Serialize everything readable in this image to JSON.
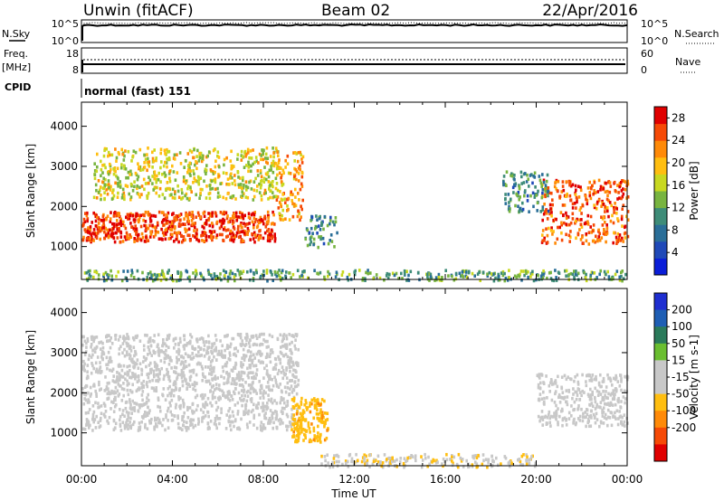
{
  "header": {
    "station": "Unwin (fitACF)",
    "beam": "Beam 02",
    "date": "22/Apr/2016"
  },
  "panel_labels": {
    "nsky": "N.Sky",
    "nsearch": "N.Search",
    "freq": "Freq.",
    "mhz": "[MHz]",
    "nave": "Nave",
    "cpid": "CPID",
    "cpid_value": "normal (fast) 151"
  },
  "small_axes": {
    "noise_ticks": [
      "10^5",
      "10^0"
    ],
    "noise_right_ticks": [
      "10^5",
      "10^0"
    ],
    "freq_ticks": [
      "18",
      "8"
    ],
    "nave_ticks": [
      "60",
      "0"
    ]
  },
  "colors": {
    "power_scale": [
      "#0a1ed8",
      "#1f49b8",
      "#2a6e98",
      "#3e8c78",
      "#78b440",
      "#c8d820",
      "#ffbe10",
      "#ff8a08",
      "#f64a06",
      "#e00000"
    ],
    "velocity_scale": [
      "#1e2ed0",
      "#1e5eb4",
      "#2a7a5a",
      "#6abe30",
      "#c8c8c8",
      "#c8c8c8",
      "#ffbe10",
      "#ff8a08",
      "#f64a06",
      "#e00000"
    ]
  },
  "chart_data": [
    {
      "type": "heatmap",
      "name": "power",
      "xlabel": "Time UT",
      "ylabel": "Slant Range [km]",
      "x_ticks": [
        "00:00",
        "04:00",
        "08:00",
        "12:00",
        "16:00",
        "20:00",
        "00:00"
      ],
      "x_range_hours": [
        0,
        24
      ],
      "y_ticks": [
        1000,
        2000,
        3000,
        4000
      ],
      "y_range_km": [
        180,
        4600
      ],
      "colorbar_label": "Power [dB]",
      "colorbar_ticks": [
        4,
        8,
        12,
        16,
        20,
        24,
        28
      ],
      "colorbar_range": [
        0,
        30
      ],
      "features": [
        {
          "hours": [
            0,
            8.5
          ],
          "range_km": [
            1150,
            1900
          ],
          "level_db": 26
        },
        {
          "hours": [
            0.5,
            8.6
          ],
          "range_km": [
            2200,
            3500
          ],
          "level_db": 17
        },
        {
          "hours": [
            8.5,
            9.7
          ],
          "range_km": [
            1700,
            3400
          ],
          "level_db": 22
        },
        {
          "hours": [
            9.8,
            11.2
          ],
          "range_km": [
            1000,
            1800
          ],
          "level_db": 10
        },
        {
          "hours": [
            20.2,
            24
          ],
          "range_km": [
            1100,
            2700
          ],
          "level_db": 25
        },
        {
          "hours": [
            18.5,
            20.5
          ],
          "range_km": [
            1900,
            2900
          ],
          "level_db": 10
        },
        {
          "hours": [
            0,
            24
          ],
          "range_km": [
            180,
            450
          ],
          "level_db": 12
        }
      ]
    },
    {
      "type": "heatmap",
      "name": "velocity",
      "xlabel": "Time UT",
      "ylabel": "Slant Range [km]",
      "x_ticks": [
        "00:00",
        "04:00",
        "08:00",
        "12:00",
        "16:00",
        "20:00",
        "00:00"
      ],
      "x_range_hours": [
        0,
        24
      ],
      "y_ticks": [
        1000,
        2000,
        3000,
        4000
      ],
      "y_range_km": [
        180,
        4600
      ],
      "colorbar_label": "Velocity [m s-1]",
      "colorbar_ticks": [
        200,
        100,
        50,
        15,
        -15,
        -50,
        -100,
        -200
      ],
      "colorbar_range": [
        -250,
        250
      ],
      "features": [
        {
          "hours": [
            0,
            9.5
          ],
          "range_km": [
            1100,
            3500
          ],
          "velocity": 0
        },
        {
          "hours": [
            9.2,
            10.8
          ],
          "range_km": [
            800,
            1900
          ],
          "velocity": -80
        },
        {
          "hours": [
            10.5,
            20
          ],
          "range_km": [
            180,
            500
          ],
          "velocity": -40
        },
        {
          "hours": [
            20,
            24
          ],
          "range_km": [
            1200,
            2500
          ],
          "velocity": 0
        }
      ]
    }
  ]
}
